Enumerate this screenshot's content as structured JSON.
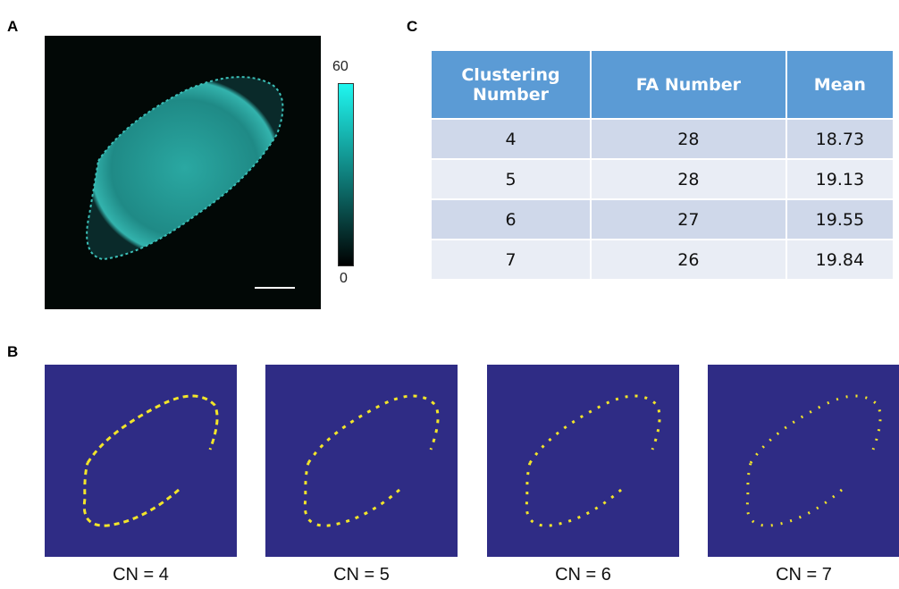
{
  "panel_a": {
    "label": "A",
    "colorbar_max": 60,
    "colorbar_min": 0
  },
  "panel_b": {
    "label": "B",
    "captions": [
      "CN = 4",
      "CN = 5",
      "CN = 6",
      "CN = 7"
    ]
  },
  "panel_c": {
    "label": "C",
    "table": {
      "headers": [
        "Clustering Number",
        "FA Number",
        "Mean"
      ],
      "rows": [
        [
          4,
          28,
          18.73
        ],
        [
          5,
          28,
          19.13
        ],
        [
          6,
          27,
          19.55
        ],
        [
          7,
          26,
          19.84
        ]
      ]
    }
  }
}
